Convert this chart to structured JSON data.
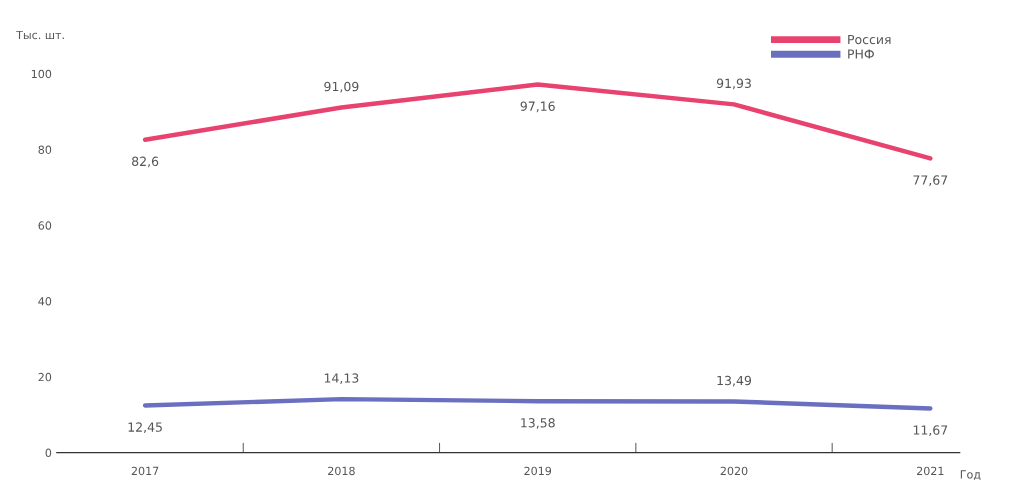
{
  "chart_data": {
    "type": "line",
    "ylabel": "Тыс. шт.",
    "xlabel": "Год",
    "categories": [
      "2017",
      "2018",
      "2019",
      "2020",
      "2021"
    ],
    "series": [
      {
        "name": "Россия",
        "color": "#e8436f",
        "values": [
          82.6,
          91.09,
          97.16,
          91.93,
          77.67
        ],
        "value_labels": [
          "82,6",
          "91,09",
          "97,16",
          "91,93",
          "77,67"
        ]
      },
      {
        "name": "РНФ",
        "color": "#6b6fc0",
        "values": [
          12.45,
          14.13,
          13.58,
          13.49,
          11.67
        ],
        "value_labels": [
          "12,45",
          "14,13",
          "13,58",
          "13,49",
          "11,67"
        ]
      }
    ],
    "ylim": [
      0,
      100
    ],
    "yticks": [
      0,
      20,
      40,
      60,
      80,
      100
    ],
    "grid": false,
    "legend": "top right",
    "marker": "none",
    "line_style": "solid"
  }
}
